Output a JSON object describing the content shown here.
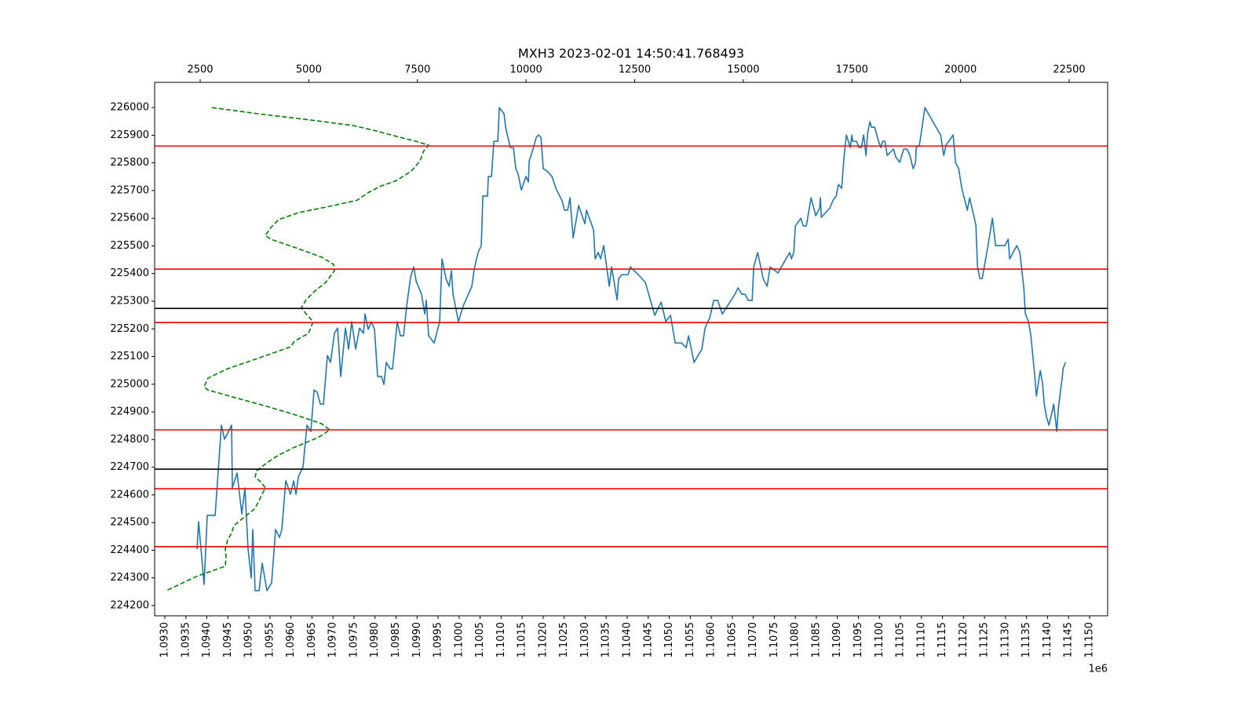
{
  "chart_data": {
    "type": "line",
    "title": "MXH3 2023-02-01 14:50:41.768493",
    "x_offset_label": "1e6",
    "xlim": [
      1092757,
      1115430
    ],
    "x2lim": [
      1452,
      23385
    ],
    "ylim": [
      224163,
      226091
    ],
    "xticks": [
      {
        "value": 1093000,
        "label": "1.0930"
      },
      {
        "value": 1093500,
        "label": "1.0935"
      },
      {
        "value": 1094000,
        "label": "1.0940"
      },
      {
        "value": 1094500,
        "label": "1.0945"
      },
      {
        "value": 1095000,
        "label": "1.0950"
      },
      {
        "value": 1095500,
        "label": "1.0955"
      },
      {
        "value": 1096000,
        "label": "1.0960"
      },
      {
        "value": 1096500,
        "label": "1.0965"
      },
      {
        "value": 1097000,
        "label": "1.0970"
      },
      {
        "value": 1097500,
        "label": "1.0975"
      },
      {
        "value": 1098000,
        "label": "1.0980"
      },
      {
        "value": 1098500,
        "label": "1.0985"
      },
      {
        "value": 1099000,
        "label": "1.0990"
      },
      {
        "value": 1099500,
        "label": "1.0995"
      },
      {
        "value": 1100000,
        "label": "1.1000"
      },
      {
        "value": 1100500,
        "label": "1.1005"
      },
      {
        "value": 1101000,
        "label": "1.1010"
      },
      {
        "value": 1101500,
        "label": "1.1015"
      },
      {
        "value": 1102000,
        "label": "1.1020"
      },
      {
        "value": 1102500,
        "label": "1.1025"
      },
      {
        "value": 1103000,
        "label": "1.1030"
      },
      {
        "value": 1103500,
        "label": "1.1035"
      },
      {
        "value": 1104000,
        "label": "1.1040"
      },
      {
        "value": 1104500,
        "label": "1.1045"
      },
      {
        "value": 1105000,
        "label": "1.1050"
      },
      {
        "value": 1105500,
        "label": "1.1055"
      },
      {
        "value": 1106000,
        "label": "1.1060"
      },
      {
        "value": 1106500,
        "label": "1.1065"
      },
      {
        "value": 1107000,
        "label": "1.1070"
      },
      {
        "value": 1107500,
        "label": "1.1075"
      },
      {
        "value": 1108000,
        "label": "1.1080"
      },
      {
        "value": 1108500,
        "label": "1.1085"
      },
      {
        "value": 1109000,
        "label": "1.1090"
      },
      {
        "value": 1109500,
        "label": "1.1095"
      },
      {
        "value": 1110000,
        "label": "1.1100"
      },
      {
        "value": 1110500,
        "label": "1.1105"
      },
      {
        "value": 1111000,
        "label": "1.1110"
      },
      {
        "value": 1111500,
        "label": "1.1115"
      },
      {
        "value": 1112000,
        "label": "1.1120"
      },
      {
        "value": 1112500,
        "label": "1.1125"
      },
      {
        "value": 1113000,
        "label": "1.1130"
      },
      {
        "value": 1113500,
        "label": "1.1135"
      },
      {
        "value": 1114000,
        "label": "1.1140"
      },
      {
        "value": 1114500,
        "label": "1.1145"
      },
      {
        "value": 1115000,
        "label": "1.1150"
      }
    ],
    "x2ticks": [
      2500,
      5000,
      7500,
      10000,
      12500,
      15000,
      17500,
      20000,
      22500
    ],
    "yticks": [
      224200,
      224300,
      224400,
      224500,
      224600,
      224700,
      224800,
      224900,
      225000,
      225100,
      225200,
      225300,
      225400,
      225500,
      225600,
      225700,
      225800,
      225900,
      226000
    ],
    "hlines": [
      {
        "value": 225861,
        "color": "#ff0000"
      },
      {
        "value": 225416,
        "color": "#ff0000"
      },
      {
        "value": 225274,
        "color": "#000000"
      },
      {
        "value": 225223,
        "color": "#ff0000"
      },
      {
        "value": 224835,
        "color": "#ff0000"
      },
      {
        "value": 224693,
        "color": "#000000"
      },
      {
        "value": 224622,
        "color": "#ff0000"
      },
      {
        "value": 224413,
        "color": "#ff0000"
      }
    ],
    "series": [
      {
        "color": "#1f77b4",
        "dashed": false,
        "axis": "x",
        "x": [
          1093766,
          1093803,
          1093934,
          1094009,
          1094196,
          1094345,
          1094420,
          1094588,
          1094606,
          1094719,
          1094831,
          1094905,
          1094980,
          1095055,
          1095092,
          1095148,
          1095242,
          1095316,
          1095428,
          1095540,
          1095634,
          1095727,
          1095783,
          1095877,
          1095989,
          1096064,
          1096120,
          1096176,
          1096288,
          1096381,
          1096474,
          1096549,
          1096624,
          1096699,
          1096773,
          1096867,
          1096941,
          1097035,
          1097110,
          1097184,
          1097296,
          1097371,
          1097446,
          1097539,
          1097633,
          1097726,
          1097763,
          1097838,
          1097913,
          1097988,
          1098062,
          1098156,
          1098212,
          1098268,
          1098361,
          1098417,
          1098529,
          1098604,
          1098679,
          1098754,
          1098847,
          1098922,
          1098978,
          1099108,
          1099183,
          1099220,
          1099276,
          1099407,
          1099538,
          1099594,
          1099687,
          1099762,
          1099818,
          1099856,
          1099986,
          1100098,
          1100304,
          1100360,
          1100453,
          1100528,
          1100565,
          1100677,
          1100696,
          1100771,
          1100827,
          1100920,
          1100958,
          1101070,
          1101107,
          1101219,
          1101294,
          1101350,
          1101406,
          1101481,
          1101593,
          1101649,
          1101668,
          1101761,
          1101836,
          1101892,
          1101948,
          1102004,
          1102097,
          1102209,
          1102303,
          1102452,
          1102508,
          1102583,
          1102639,
          1102714,
          1102844,
          1102994,
          1103031,
          1103199,
          1103237,
          1103311,
          1103367,
          1103442,
          1103573,
          1103629,
          1103760,
          1103797,
          1103872,
          1104021,
          1104077,
          1104301,
          1104432,
          1104656,
          1104806,
          1104918,
          1105030,
          1105142,
          1105291,
          1105403,
          1105460,
          1105590,
          1105665,
          1105777,
          1105852,
          1105964,
          1106057,
          1106151,
          1106263,
          1106562,
          1106636,
          1106730,
          1106805,
          1106879,
          1106973,
          1107010,
          1107103,
          1107178,
          1107234,
          1107328,
          1107402,
          1107589,
          1107776,
          1107869,
          1107907,
          1107963,
          1108000,
          1108131,
          1108187,
          1108262,
          1108374,
          1108486,
          1108579,
          1108598,
          1108617,
          1108822,
          1108897,
          1108971,
          1109027,
          1109102,
          1109158,
          1109214,
          1109308,
          1109345,
          1109364,
          1109457,
          1109513,
          1109569,
          1109625,
          1109681,
          1109719,
          1109775,
          1109812,
          1109887,
          1109980,
          1110036,
          1110074,
          1110130,
          1110186,
          1110335,
          1110391,
          1110484,
          1110578,
          1110653,
          1110727,
          1110802,
          1110858,
          1110877,
          1110951,
          1111008,
          1111082,
          1111325,
          1111456,
          1111531,
          1111587,
          1111755,
          1111811,
          1111886,
          1111960,
          1112091,
          1112147,
          1112203,
          1112296,
          1112334,
          1112390,
          1112446,
          1112577,
          1112689,
          1112764,
          1112988,
          1113063,
          1113100,
          1113268,
          1113343,
          1113436,
          1113473,
          1113548,
          1113604,
          1113698,
          1113735,
          1113828,
          1113884,
          1113922,
          1113978,
          1114034,
          1114109,
          1114146,
          1114221,
          1114258,
          1114352,
          1114371,
          1114427
        ],
        "values": [
          224404,
          224503,
          224276,
          224526,
          224526,
          224852,
          224801,
          224852,
          224625,
          224679,
          224531,
          224625,
          224404,
          224299,
          224475,
          224254,
          224254,
          224353,
          224254,
          224282,
          224475,
          224446,
          224475,
          224651,
          224602,
          224651,
          224602,
          224665,
          224702,
          224852,
          224829,
          224979,
          224971,
          224928,
          224928,
          225104,
          225079,
          225184,
          225203,
          225028,
          225203,
          225127,
          225226,
          225127,
          225203,
          225184,
          225254,
          225198,
          225226,
          225198,
          225028,
          225028,
          224999,
          225079,
          225056,
          225056,
          225226,
          225175,
          225175,
          225283,
          225388,
          225424,
          225373,
          225325,
          225254,
          225303,
          225175,
          225149,
          225226,
          225453,
          225382,
          225354,
          225410,
          225325,
          225226,
          225283,
          225354,
          225416,
          225476,
          225501,
          225680,
          225680,
          225751,
          225751,
          225878,
          225878,
          226000,
          225977,
          225929,
          225855,
          225855,
          225779,
          225759,
          225702,
          225751,
          225731,
          225807,
          225850,
          225892,
          225901,
          225892,
          225779,
          225770,
          225751,
          225708,
          225663,
          225629,
          225629,
          225674,
          225529,
          225646,
          225580,
          225629,
          225558,
          225453,
          225476,
          225453,
          225501,
          225354,
          225424,
          225305,
          225382,
          225396,
          225396,
          225424,
          225390,
          225368,
          225249,
          225297,
          225226,
          225249,
          225149,
          225149,
          225132,
          225175,
          225079,
          225098,
          225127,
          225203,
          225240,
          225303,
          225303,
          225254,
          225325,
          225348,
          225325,
          225325,
          225303,
          225303,
          225424,
          225476,
          225424,
          225382,
          225354,
          225424,
          225402,
          225453,
          225476,
          225453,
          225476,
          225572,
          225600,
          225572,
          225572,
          225674,
          225609,
          225637,
          225674,
          225603,
          225637,
          225665,
          225680,
          225722,
          225708,
          225821,
          225901,
          225855,
          225901,
          225878,
          225878,
          225855,
          225855,
          225901,
          225827,
          225906,
          225949,
          225929,
          225929,
          225878,
          225855,
          225878,
          225878,
          225827,
          225850,
          225821,
          225802,
          225850,
          225850,
          225827,
          225779,
          225799,
          225855,
          225864,
          225921,
          226000,
          225935,
          225901,
          225827,
          225864,
          225901,
          225802,
          225779,
          225708,
          225629,
          225674,
          225637,
          225575,
          225424,
          225382,
          225382,
          225495,
          225600,
          225501,
          225501,
          225524,
          225453,
          225501,
          225476,
          225348,
          225254,
          225226,
          225175,
          225028,
          224957,
          225050,
          224999,
          224928,
          224880,
          224852,
          224900,
          224928,
          224829,
          224914,
          225028,
          225056,
          225079
        ]
      },
      {
        "color": "#008000",
        "dashed": true,
        "axis": "x2",
        "x": [
          2771,
          3855,
          4939,
          6022,
          6564,
          7106,
          7468,
          7757,
          7648,
          7558,
          7359,
          7016,
          6655,
          6384,
          6113,
          5481,
          4758,
          4306,
          4126,
          3999,
          4126,
          4758,
          5300,
          5571,
          5589,
          5390,
          5119,
          4939,
          4830,
          4939,
          5101,
          4993,
          4668,
          4577,
          3764,
          3132,
          2681,
          2590,
          2681,
          3313,
          4035,
          4758,
          5300,
          5481,
          5300,
          5119,
          4668,
          4306,
          4035,
          3801,
          3764,
          3909,
          3999,
          3909,
          3764,
          3494,
          3277,
          3223,
          3132,
          3078,
          3096,
          3078,
          2410,
          1723
        ],
        "values": [
          226000,
          225977,
          225957,
          225935,
          225915,
          225892,
          225878,
          225864,
          225844,
          225807,
          225770,
          225736,
          225716,
          225694,
          225665,
          225643,
          225620,
          225595,
          225566,
          225538,
          225524,
          225490,
          225459,
          225433,
          225410,
          225368,
          225334,
          225305,
          225277,
          225254,
          225226,
          225184,
          225155,
          225135,
          225090,
          225056,
          225022,
          224991,
          224979,
          224951,
          224920,
          224886,
          224857,
          224835,
          224815,
          224801,
          224772,
          224744,
          224716,
          224687,
          224665,
          224645,
          224625,
          224597,
          224551,
          224517,
          224489,
          224461,
          224438,
          224404,
          224376,
          224342,
          224305,
          224254
        ]
      }
    ]
  }
}
